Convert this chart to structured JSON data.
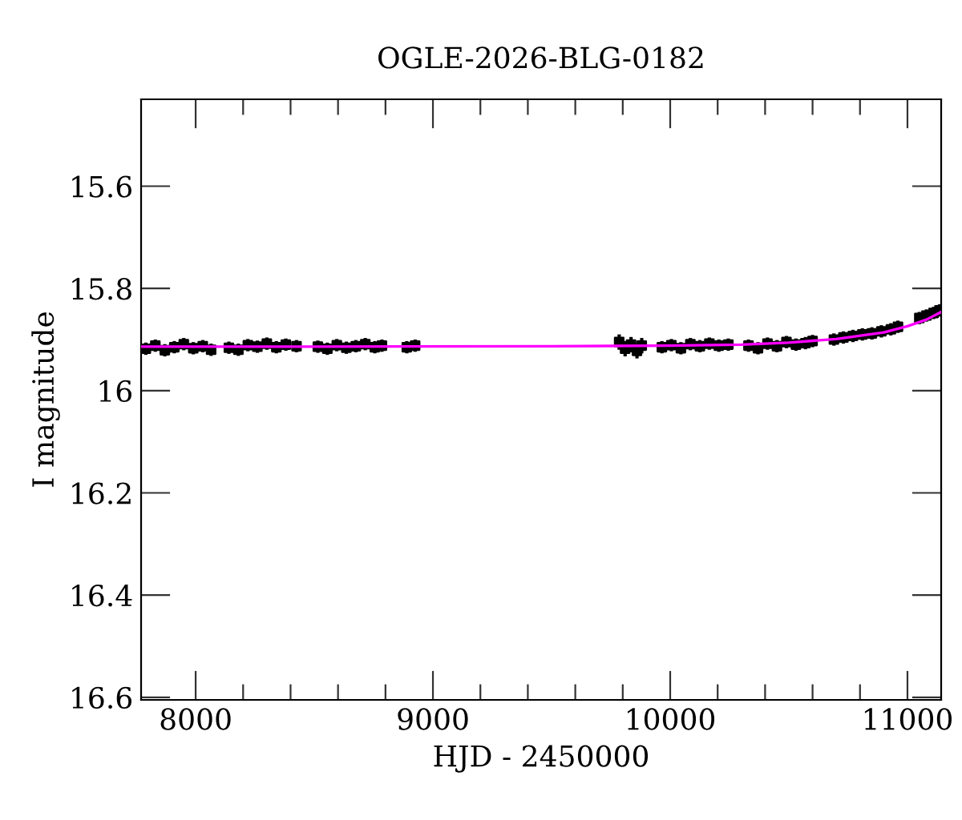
{
  "chart_data": {
    "type": "scatter",
    "title": "OGLE-2026-BLG-0182",
    "xlabel": "HJD - 2450000",
    "ylabel": "I magnitude",
    "xlim": [
      7770,
      11142
    ],
    "ylim": [
      16.605,
      15.43
    ],
    "xticks": [
      8000,
      {
        "value": 8200,
        "label": null
      },
      {
        "value": 8400,
        "label": null
      },
      {
        "value": 8600,
        "label": null
      },
      {
        "value": 8800,
        "label": null
      },
      9000,
      {
        "value": 9200,
        "label": null
      },
      {
        "value": 9400,
        "label": null
      },
      {
        "value": 9600,
        "label": null
      },
      {
        "value": 9800,
        "label": null
      },
      10000,
      {
        "value": 10200,
        "label": null
      },
      {
        "value": 10400,
        "label": null
      },
      {
        "value": 10600,
        "label": null
      },
      {
        "value": 10800,
        "label": null
      },
      11000
    ],
    "yticks": [
      15.6,
      15.8,
      16,
      16.2,
      16.4,
      16.6
    ],
    "grid": false,
    "legend": false,
    "series": [
      {
        "type": "scatter",
        "color": "#000000",
        "marker": "square",
        "x": [
          7790,
          7830,
          7870,
          7910,
          7950,
          7990,
          8030,
          8065,
          8140,
          8180,
          8220,
          8260,
          8300,
          8340,
          8380,
          8425,
          8515,
          8555,
          8595,
          8635,
          8675,
          8715,
          8755,
          8785,
          8890,
          8925,
          9785,
          9810,
          9835,
          9860,
          9880,
          9965,
          10005,
          10045,
          10085,
          10125,
          10165,
          10205,
          10245,
          10330,
          10370,
          10410,
          10450,
          10490,
          10530,
          10570,
          10600,
          10690,
          10730,
          10770,
          10810,
          10850,
          10890,
          10930,
          10960,
          11050,
          11080,
          11110,
          11135
        ],
        "values": [
          15.918,
          15.912,
          15.921,
          15.915,
          15.909,
          15.917,
          15.913,
          15.92,
          15.916,
          15.92,
          15.911,
          15.914,
          15.908,
          15.915,
          15.91,
          15.913,
          15.914,
          15.918,
          15.911,
          15.916,
          15.913,
          15.909,
          15.915,
          15.912,
          15.915,
          15.912,
          15.905,
          15.918,
          15.91,
          15.922,
          15.912,
          15.915,
          15.911,
          15.917,
          15.909,
          15.913,
          15.908,
          15.912,
          15.91,
          15.912,
          15.917,
          15.908,
          15.913,
          15.905,
          15.91,
          15.907,
          15.903,
          15.9,
          15.896,
          15.893,
          15.89,
          15.888,
          15.884,
          15.88,
          15.875,
          15.858,
          15.853,
          15.848,
          15.843
        ],
        "errors": [
          0.012,
          0.012,
          0.012,
          0.012,
          0.012,
          0.012,
          0.012,
          0.012,
          0.012,
          0.012,
          0.012,
          0.012,
          0.012,
          0.012,
          0.012,
          0.012,
          0.012,
          0.012,
          0.012,
          0.012,
          0.012,
          0.012,
          0.012,
          0.012,
          0.012,
          0.012,
          0.015,
          0.015,
          0.015,
          0.015,
          0.015,
          0.012,
          0.012,
          0.012,
          0.012,
          0.012,
          0.012,
          0.012,
          0.012,
          0.012,
          0.012,
          0.012,
          0.012,
          0.012,
          0.012,
          0.012,
          0.012,
          0.012,
          0.012,
          0.012,
          0.012,
          0.012,
          0.012,
          0.012,
          0.012,
          0.012,
          0.012,
          0.012,
          0.012
        ]
      },
      {
        "type": "line",
        "color": "#ff00ff",
        "marker": "none",
        "line_style": "solid",
        "x": [
          7770,
          8500,
          9500,
          10000,
          10300,
          10500,
          10700,
          10900,
          11000,
          11080,
          11142
        ],
        "values": [
          15.914,
          15.914,
          15.913,
          15.912,
          15.91,
          15.906,
          15.899,
          15.886,
          15.874,
          15.861,
          15.846
        ]
      }
    ]
  }
}
